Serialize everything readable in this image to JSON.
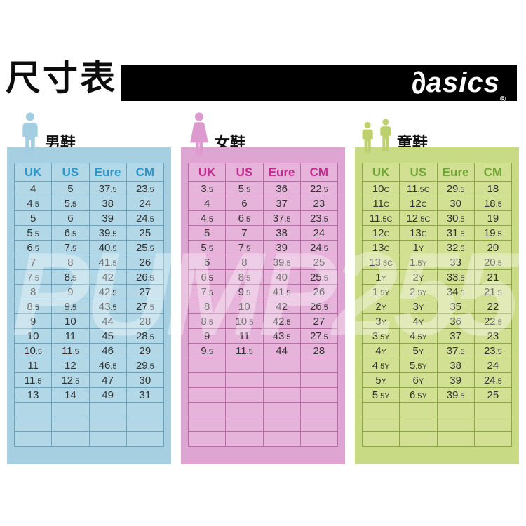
{
  "page": {
    "title": "尺寸表"
  },
  "brand": {
    "symbol": "∂",
    "name": "asics",
    "registered": "®"
  },
  "watermark": "PUMP255",
  "columns": [
    "UK",
    "US",
    "Eure",
    "CM"
  ],
  "tables": [
    {
      "id": "men",
      "label": "男鞋",
      "icon": "man-icon",
      "colors": {
        "panel": "#a6d0e2",
        "cell": "#b2d8e7",
        "line": "#6ba2bf",
        "accent": "#2e95c8",
        "icon": "#a3cde0"
      },
      "rows": [
        [
          "4",
          "5",
          "37.5",
          "23.5"
        ],
        [
          "4.5",
          "5.5",
          "38",
          "24"
        ],
        [
          "5",
          "6",
          "39",
          "24.5"
        ],
        [
          "5.5",
          "6.5",
          "39.5",
          "25"
        ],
        [
          "6.5",
          "7.5",
          "40.5",
          "25.5"
        ],
        [
          "7",
          "8",
          "41.5",
          "26"
        ],
        [
          "7.5",
          "8.5",
          "42",
          "26.5"
        ],
        [
          "8",
          "9",
          "42.5",
          "27"
        ],
        [
          "8.5",
          "9.5",
          "43.5",
          "27.5"
        ],
        [
          "9",
          "10",
          "44",
          "28"
        ],
        [
          "10",
          "11",
          "45",
          "28.5"
        ],
        [
          "10.5",
          "11.5",
          "46",
          "29"
        ],
        [
          "11",
          "12",
          "46.5",
          "29.5"
        ],
        [
          "11.5",
          "12.5",
          "47",
          "30"
        ],
        [
          "13",
          "14",
          "49",
          "31"
        ]
      ],
      "empty_rows": 3
    },
    {
      "id": "women",
      "label": "女鞋",
      "icon": "woman-icon",
      "colors": {
        "panel": "#dfa5d2",
        "cell": "#e6b3da",
        "line": "#bb6ba5",
        "accent": "#c22c8e",
        "icon": "#dd9ace"
      },
      "rows": [
        [
          "3.5",
          "5.5",
          "36",
          "22.5"
        ],
        [
          "4",
          "6",
          "37",
          "23"
        ],
        [
          "4.5",
          "6.5",
          "37.5",
          "23.5"
        ],
        [
          "5",
          "7",
          "38",
          "24"
        ],
        [
          "5.5",
          "7.5",
          "39",
          "24.5"
        ],
        [
          "6",
          "8",
          "39.5",
          "25"
        ],
        [
          "6.5",
          "8.5",
          "40",
          "25.5"
        ],
        [
          "7.5",
          "9.5",
          "41.5",
          "26"
        ],
        [
          "8",
          "10",
          "42",
          "26.5"
        ],
        [
          "8.5",
          "10.5",
          "42.5",
          "27"
        ],
        [
          "9",
          "11",
          "43.5",
          "27.5"
        ],
        [
          "9.5",
          "11.5",
          "44",
          "28"
        ]
      ],
      "empty_rows": 6
    },
    {
      "id": "kids",
      "label": "童鞋",
      "icon": "children-icon",
      "colors": {
        "panel": "#c8da83",
        "cell": "#d2e094",
        "line": "#8fa646",
        "accent": "#72a437",
        "icon": "#bdd06e"
      },
      "rows": [
        [
          "10C",
          "11.5C",
          "29.5",
          "18"
        ],
        [
          "11C",
          "12C",
          "30",
          "18.5"
        ],
        [
          "11.5C",
          "12.5C",
          "30.5",
          "19"
        ],
        [
          "12C",
          "13C",
          "31.5",
          "19.5"
        ],
        [
          "13C",
          "1Y",
          "32.5",
          "20"
        ],
        [
          "13.5C",
          "1.5Y",
          "33",
          "20.5"
        ],
        [
          "1Y",
          "2Y",
          "33.5",
          "21"
        ],
        [
          "1.5Y",
          "2.5Y",
          "34.5",
          "21.5"
        ],
        [
          "2Y",
          "3Y",
          "35",
          "22"
        ],
        [
          "3Y",
          "4Y",
          "36",
          "22.5"
        ],
        [
          "3.5Y",
          "4.5Y",
          "37",
          "23"
        ],
        [
          "4Y",
          "5Y",
          "37.5",
          "23.5"
        ],
        [
          "4.5Y",
          "5.5Y",
          "38",
          "24"
        ],
        [
          "5Y",
          "6Y",
          "39",
          "24.5"
        ],
        [
          "5.5Y",
          "6.5Y",
          "39.5",
          "25"
        ]
      ],
      "empty_rows": 3
    }
  ]
}
